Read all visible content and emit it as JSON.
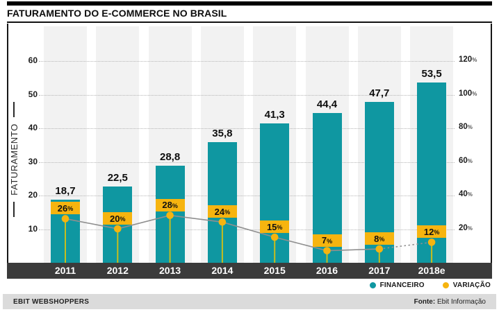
{
  "title": "FATURAMENTO DO E-COMMERCE NO BRASIL",
  "chart_data": {
    "type": "bar",
    "title": "FATURAMENTO DO E-COMMERCE NO BRASIL",
    "categories": [
      "2011",
      "2012",
      "2013",
      "2014",
      "2015",
      "2016",
      "2017",
      "2018e"
    ],
    "series": [
      {
        "name": "FINANCEIRO",
        "type": "bar",
        "color": "#0f97a1",
        "values": [
          18.7,
          22.5,
          28.8,
          35.8,
          41.3,
          44.4,
          47.7,
          53.5
        ],
        "value_labels": [
          "18,7",
          "22,5",
          "28,8",
          "35,8",
          "41,3",
          "44,4",
          "47,7",
          "53,5"
        ]
      },
      {
        "name": "VARIAÇÃO",
        "type": "line",
        "color": "#f6b40f",
        "unit": "%",
        "values": [
          26,
          20,
          28,
          24,
          15,
          7,
          8,
          12
        ],
        "value_labels": [
          "26%",
          "20%",
          "28%",
          "24%",
          "15%",
          "7%",
          "8%",
          "12%"
        ],
        "dashed_from_index": 6
      }
    ],
    "left_axis": {
      "label": "FATURAMENTO",
      "ticks": [
        "60",
        "50",
        "40",
        "30",
        "20",
        "10"
      ],
      "tick_values": [
        60,
        50,
        40,
        30,
        20,
        10
      ],
      "range": [
        0,
        71
      ]
    },
    "right_axis": {
      "ticks": [
        "120",
        "100",
        "80",
        "60",
        "40",
        "20"
      ],
      "tick_values": [
        120,
        100,
        80,
        60,
        40,
        20
      ],
      "unit": "%",
      "range": [
        0,
        142
      ]
    },
    "grid": "horizontal-dotted",
    "legend_position": "bottom-right"
  },
  "legend": {
    "items": [
      {
        "label": "FINANCEIRO",
        "color": "#0f97a1"
      },
      {
        "label": "VARIAÇÃO",
        "color": "#f6b40f"
      }
    ]
  },
  "footer": {
    "left": "EBIT WEBSHOPPERS",
    "source_label": "Fonte:",
    "source_value": "Ebit Informação"
  },
  "colors": {
    "bar": "#0f97a1",
    "marker": "#f6b40f",
    "stem": "#c6bd1e",
    "trend_line": "#8f8f8f",
    "year_band": "#3b3b3b",
    "stripe": "#f2f2f2",
    "footer_bg": "#dbdbdb"
  }
}
